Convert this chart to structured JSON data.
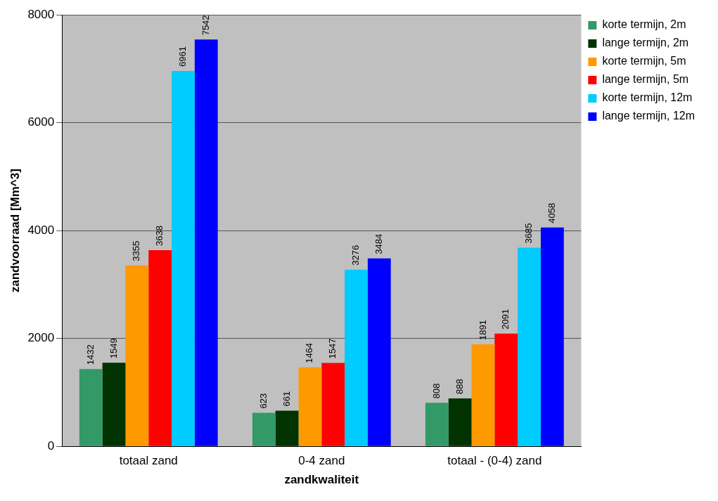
{
  "chart_data": {
    "type": "bar",
    "xlabel": "zandkwaliteit",
    "ylabel": "zandvoorraad [Mm^3]",
    "categories": [
      "totaal zand",
      "0-4 zand",
      "totaal - (0-4) zand"
    ],
    "series": [
      {
        "name": "korte termijn, 2m",
        "color": "#339966",
        "values": [
          1432,
          623,
          808
        ]
      },
      {
        "name": "lange termijn, 2m",
        "color": "#003300",
        "values": [
          1549,
          661,
          888
        ]
      },
      {
        "name": "korte termijn, 5m",
        "color": "#ff9900",
        "values": [
          3355,
          1464,
          1891
        ]
      },
      {
        "name": "lange termijn, 5m",
        "color": "#ff0000",
        "values": [
          3638,
          1547,
          2091
        ]
      },
      {
        "name": "korte termijn, 12m",
        "color": "#00ccff",
        "values": [
          6961,
          3276,
          3685
        ]
      },
      {
        "name": "lange termijn, 12m",
        "color": "#0000ff",
        "values": [
          7542,
          3484,
          4058
        ]
      }
    ],
    "ylim": [
      0,
      8000
    ],
    "yticks": [
      0,
      2000,
      4000,
      6000,
      8000
    ],
    "grid": "y",
    "legend": "top right",
    "data_labels": true
  }
}
